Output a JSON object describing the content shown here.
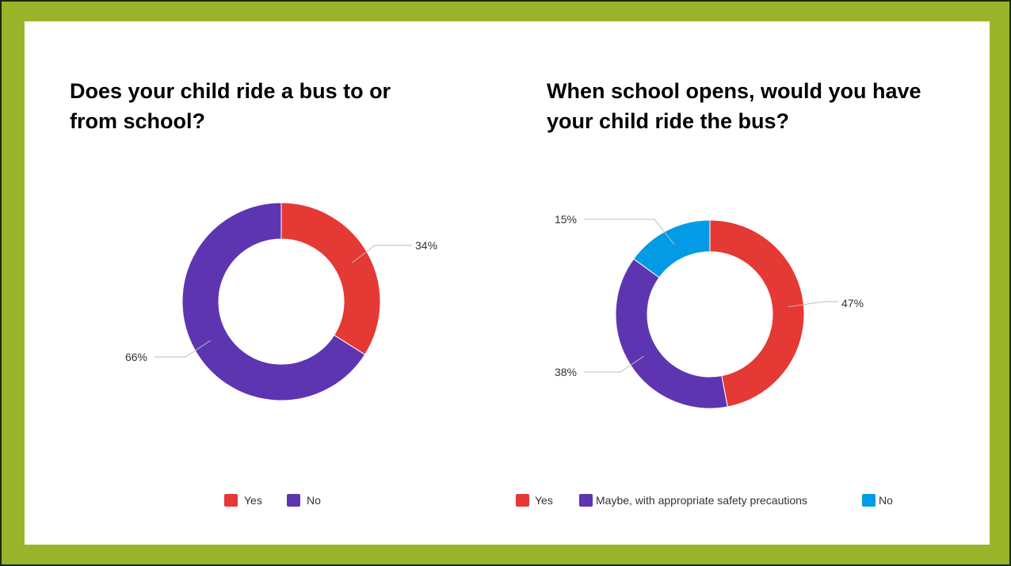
{
  "chart_data": [
    {
      "type": "pie",
      "title": "Does your child ride a bus to or from school?",
      "categories": [
        "Yes",
        "No"
      ],
      "values": [
        34,
        66
      ],
      "labels": [
        "34%",
        "66%"
      ],
      "colors": [
        "#e53935",
        "#5e35b1"
      ],
      "donut": true,
      "legend": "bottom"
    },
    {
      "type": "pie",
      "title": "When school opens, would you have your child ride the bus?",
      "categories": [
        "Yes",
        "Maybe, with appropriate safety precautions",
        "No"
      ],
      "values": [
        47,
        38,
        15
      ],
      "labels": [
        "47%",
        "38%",
        "15%"
      ],
      "colors": [
        "#e53935",
        "#5e35b1",
        "#039be5"
      ],
      "donut": true,
      "legend": "bottom"
    }
  ],
  "colors": {
    "frame": "#9bb52a",
    "frame_border": "#1e2a08"
  }
}
